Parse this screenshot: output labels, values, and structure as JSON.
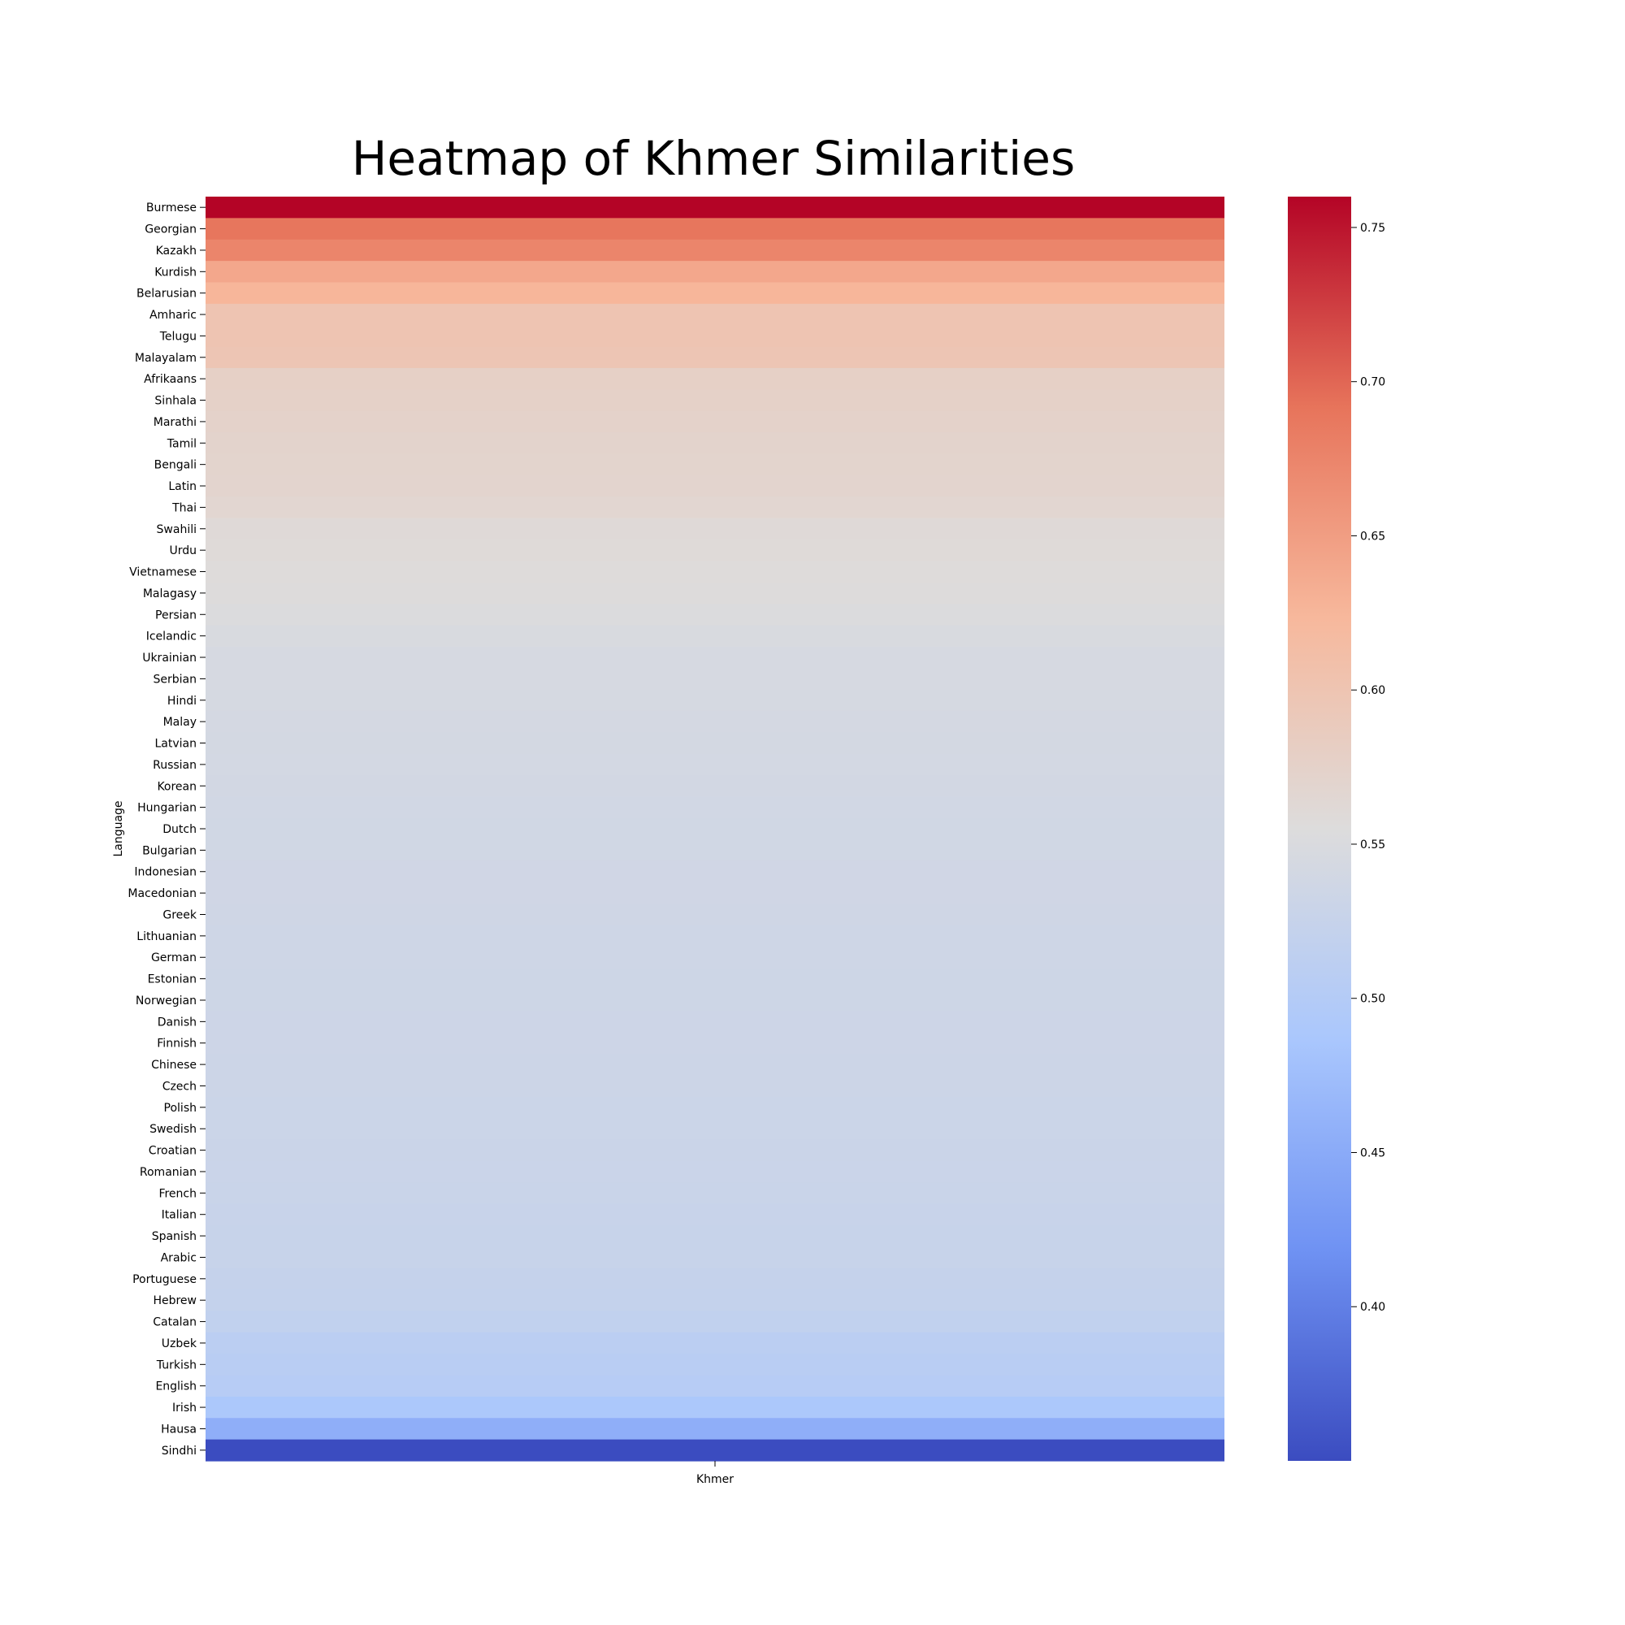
{
  "chart_data": {
    "type": "heatmap",
    "title": "Heatmap of Khmer Similarities",
    "xlabel": "",
    "ylabel": "Language",
    "columns": [
      "Khmer"
    ],
    "rows": [
      "Burmese",
      "Georgian",
      "Kazakh",
      "Kurdish",
      "Belarusian",
      "Amharic",
      "Telugu",
      "Malayalam",
      "Afrikaans",
      "Sinhala",
      "Marathi",
      "Tamil",
      "Bengali",
      "Latin",
      "Thai",
      "Swahili",
      "Urdu",
      "Vietnamese",
      "Malagasy",
      "Persian",
      "Icelandic",
      "Ukrainian",
      "Serbian",
      "Hindi",
      "Malay",
      "Latvian",
      "Russian",
      "Korean",
      "Hungarian",
      "Dutch",
      "Bulgarian",
      "Indonesian",
      "Macedonian",
      "Greek",
      "Lithuanian",
      "German",
      "Estonian",
      "Norwegian",
      "Danish",
      "Finnish",
      "Chinese",
      "Czech",
      "Polish",
      "Swedish",
      "Croatian",
      "Romanian",
      "French",
      "Italian",
      "Spanish",
      "Arabic",
      "Portuguese",
      "Hebrew",
      "Catalan",
      "Uzbek",
      "Turkish",
      "English",
      "Irish",
      "Hausa",
      "Sindhi"
    ],
    "values": [
      0.76,
      0.69,
      0.675,
      0.64,
      0.625,
      0.6,
      0.6,
      0.598,
      0.578,
      0.576,
      0.574,
      0.572,
      0.571,
      0.57,
      0.567,
      0.56,
      0.559,
      0.557,
      0.556,
      0.552,
      0.548,
      0.545,
      0.545,
      0.544,
      0.543,
      0.542,
      0.541,
      0.54,
      0.539,
      0.538,
      0.538,
      0.537,
      0.537,
      0.536,
      0.535,
      0.535,
      0.534,
      0.534,
      0.533,
      0.533,
      0.532,
      0.532,
      0.531,
      0.531,
      0.53,
      0.529,
      0.528,
      0.527,
      0.526,
      0.525,
      0.523,
      0.521,
      0.518,
      0.51,
      0.507,
      0.504,
      0.49,
      0.455,
      0.35
    ],
    "colorbar": {
      "min": 0.35,
      "max": 0.76,
      "ticks": [
        0.4,
        0.45,
        0.5,
        0.55,
        0.6,
        0.65,
        0.7,
        0.75
      ],
      "tick_labels": [
        "0.40",
        "0.45",
        "0.50",
        "0.55",
        "0.60",
        "0.65",
        "0.70",
        "0.75"
      ],
      "colormap": "coolwarm",
      "stops": [
        "#3b4cc0",
        "#6f92f3",
        "#aac7fd",
        "#dddcdc",
        "#f7b89c",
        "#e7745b",
        "#b40426"
      ]
    }
  }
}
